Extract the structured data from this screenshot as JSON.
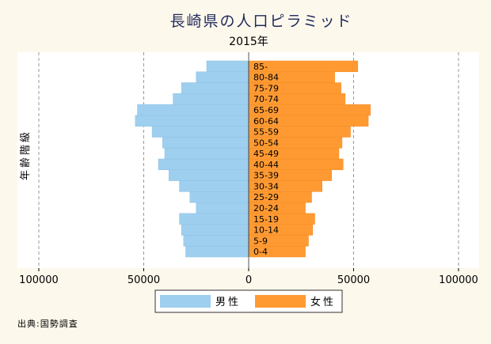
{
  "chart_data": {
    "type": "bar",
    "title": "長崎県の人口ピラミッド",
    "subtitle": "2015年",
    "ylabel": "年齢階級",
    "xlabel": "",
    "xlim": [
      -100000,
      100000
    ],
    "x_ticks": [
      -100000,
      -50000,
      0,
      50000,
      100000
    ],
    "x_tick_labels": [
      "100000",
      "50000",
      "0",
      "50000",
      "100000"
    ],
    "grid": true,
    "legend_position": "bottom",
    "categories": [
      "0-4",
      "5-9",
      "10-14",
      "15-19",
      "20-24",
      "25-29",
      "30-34",
      "35-39",
      "40-44",
      "45-49",
      "50-54",
      "55-59",
      "60-64",
      "65-69",
      "70-74",
      "75-79",
      "80-84",
      "85-"
    ],
    "series": [
      {
        "name": "男性",
        "color": "#9ecfef",
        "values": [
          30000,
          31000,
          32000,
          33000,
          25000,
          28000,
          33000,
          38000,
          43000,
          40000,
          41000,
          46000,
          54000,
          53000,
          36000,
          32000,
          25000,
          20000
        ]
      },
      {
        "name": "女性",
        "color": "#ff9a33",
        "values": [
          27000,
          28500,
          30500,
          31500,
          27000,
          30000,
          35000,
          39500,
          45000,
          43000,
          44500,
          48500,
          57000,
          58000,
          46000,
          44000,
          41000,
          52000
        ]
      }
    ],
    "source_note": "出典:国勢調査"
  }
}
